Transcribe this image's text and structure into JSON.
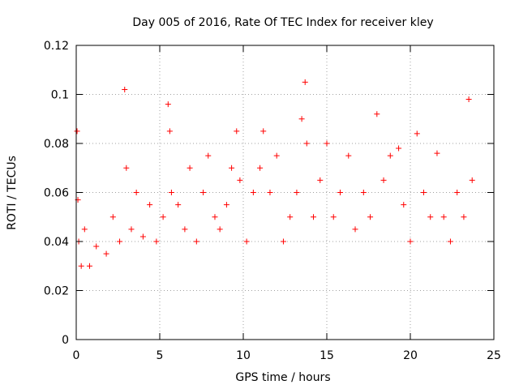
{
  "chart_data": {
    "type": "scatter",
    "title": "Day 005 of 2016, Rate Of TEC Index for receiver kley",
    "xlabel": "GPS time / hours",
    "ylabel": "ROTI / TECUs",
    "xlim": [
      0,
      25
    ],
    "ylim": [
      0,
      0.12
    ],
    "xticks": [
      0,
      5,
      10,
      15,
      20,
      25
    ],
    "yticks": [
      0,
      0.02,
      0.04,
      0.06,
      0.08,
      0.1,
      0.12
    ],
    "grid": true,
    "marker": "+",
    "color": "#ff0000",
    "series": [
      {
        "x": [
          0.05,
          0.1,
          0.15,
          0.3,
          0.5,
          0.8,
          1.2,
          1.8,
          2.2,
          2.6,
          2.9,
          3.0,
          3.3,
          3.6,
          4.0,
          4.4,
          4.8,
          5.2,
          5.5,
          5.6,
          5.7,
          6.1,
          6.5,
          6.8,
          7.2,
          7.6,
          7.9,
          8.3,
          8.6,
          9.0,
          9.3,
          9.6,
          9.8,
          10.2,
          10.6,
          11.0,
          11.2,
          11.6,
          12.0,
          12.4,
          12.8,
          13.2,
          13.5,
          13.7,
          13.8,
          14.2,
          14.6,
          15.0,
          15.4,
          15.8,
          16.3,
          16.7,
          17.2,
          17.6,
          18.0,
          18.4,
          18.8,
          19.3,
          19.6,
          20.0,
          20.4,
          20.8,
          21.2,
          21.6,
          22.0,
          22.4,
          22.8,
          23.2,
          23.5,
          23.7
        ],
        "y": [
          0.085,
          0.057,
          0.04,
          0.03,
          0.045,
          0.03,
          0.038,
          0.035,
          0.05,
          0.04,
          0.102,
          0.07,
          0.045,
          0.06,
          0.042,
          0.055,
          0.04,
          0.05,
          0.096,
          0.085,
          0.06,
          0.055,
          0.045,
          0.07,
          0.04,
          0.06,
          0.075,
          0.05,
          0.045,
          0.055,
          0.07,
          0.085,
          0.065,
          0.04,
          0.06,
          0.07,
          0.085,
          0.06,
          0.075,
          0.04,
          0.05,
          0.06,
          0.09,
          0.105,
          0.08,
          0.05,
          0.065,
          0.08,
          0.05,
          0.06,
          0.075,
          0.045,
          0.06,
          0.05,
          0.092,
          0.065,
          0.075,
          0.078,
          0.055,
          0.04,
          0.084,
          0.06,
          0.05,
          0.076,
          0.05,
          0.04,
          0.06,
          0.05,
          0.098,
          0.065
        ]
      }
    ]
  }
}
